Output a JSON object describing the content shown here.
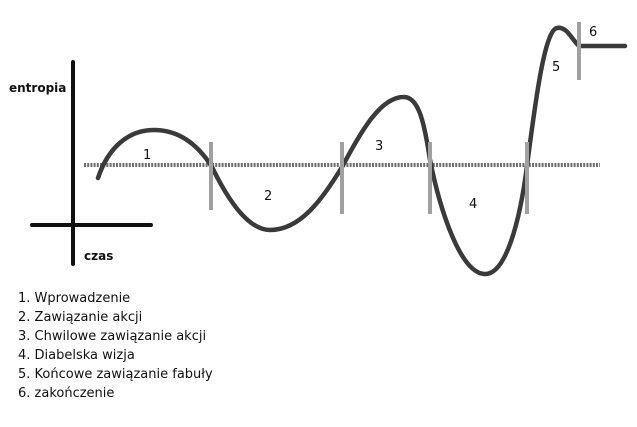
{
  "diagram": {
    "y_axis_label": "entropia",
    "x_axis_label": "czas",
    "segment_numbers": [
      "1",
      "2",
      "3",
      "4",
      "5",
      "6"
    ],
    "colors": {
      "curve": "#3a3a3a",
      "axes": "#111111",
      "baseline": "#6e6e6e",
      "markers": "#a0a0a0"
    }
  },
  "legend": {
    "items": [
      "1. Wprowadzenie",
      "2. Zawiązanie akcji",
      "3. Chwilowe zawiązanie akcji",
      "4. Diabelska wizja",
      "5. Końcowe zawiązanie fabuły",
      "6. zakończenie"
    ]
  }
}
